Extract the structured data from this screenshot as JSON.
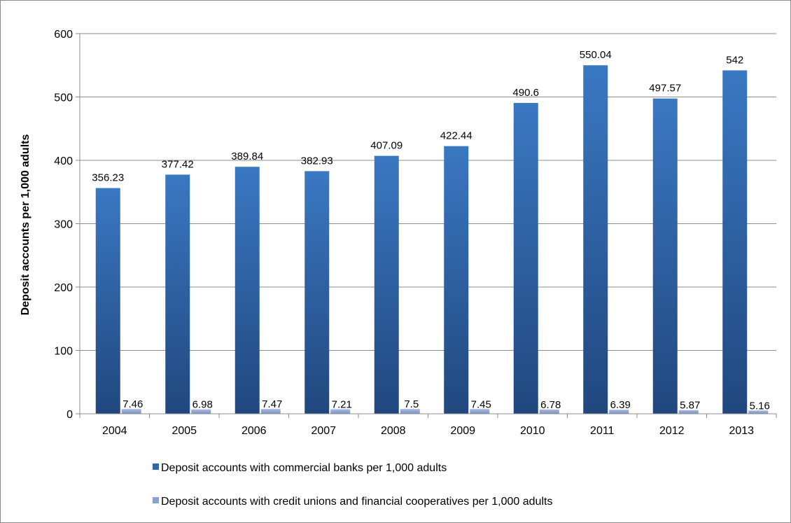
{
  "chart_data": {
    "type": "bar",
    "title": "",
    "xlabel": "",
    "ylabel": "Deposit accounts per 1,000 adults",
    "ylim": [
      0,
      600
    ],
    "yticks": [
      0,
      100,
      200,
      300,
      400,
      500,
      600
    ],
    "grid": true,
    "legend_position": "bottom",
    "categories": [
      "2004",
      "2005",
      "2006",
      "2007",
      "2008",
      "2009",
      "2010",
      "2011",
      "2012",
      "2013"
    ],
    "series": [
      {
        "name": "Deposit accounts with commercial banks per 1,000 adults",
        "color": "#2f66ac",
        "values": [
          356.23,
          377.42,
          389.84,
          382.93,
          407.09,
          422.44,
          490.6,
          550.04,
          497.57,
          542
        ],
        "labels": [
          "356.23",
          "377.42",
          "389.84",
          "382.93",
          "407.09",
          "422.44",
          "490.6",
          "550.04",
          "497.57",
          "542"
        ]
      },
      {
        "name": "Deposit accounts with credit unions and financial cooperatives per 1,000 adults",
        "color": "#8ba2cf",
        "values": [
          7.46,
          6.98,
          7.47,
          7.21,
          7.5,
          7.45,
          6.78,
          6.39,
          5.87,
          5.16
        ],
        "labels": [
          "7.46",
          "6.98",
          "7.47",
          "7.21",
          "7.5",
          "7.45",
          "6.78",
          "6.39",
          "5.87",
          "5.16"
        ]
      }
    ]
  }
}
